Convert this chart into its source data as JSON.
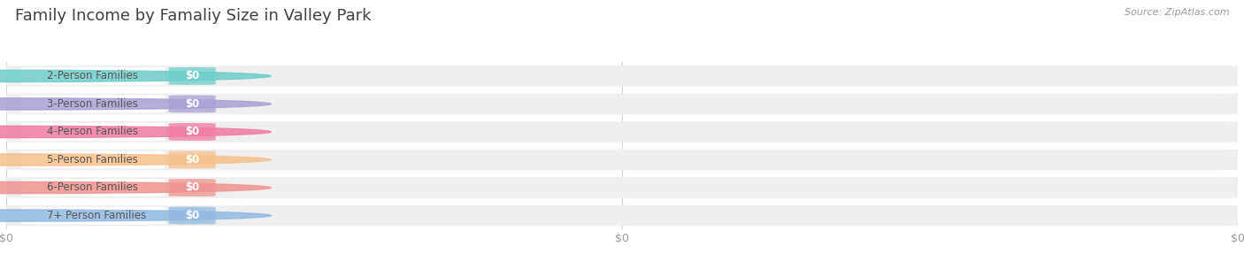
{
  "title": "Family Income by Famaliy Size in Valley Park",
  "source": "Source: ZipAtlas.com",
  "categories": [
    "2-Person Families",
    "3-Person Families",
    "4-Person Families",
    "5-Person Families",
    "6-Person Families",
    "7+ Person Families"
  ],
  "values": [
    0,
    0,
    0,
    0,
    0,
    0
  ],
  "bar_colors": [
    "#6dcdc9",
    "#a99fd5",
    "#f07ba1",
    "#f6c08a",
    "#f09390",
    "#91b9e1"
  ],
  "background_color": "#ffffff",
  "bar_bg_color": "#efefef",
  "label_bg_color": "#f8f8f8",
  "value_labels": [
    "$0",
    "$0",
    "$0",
    "$0",
    "$0",
    "$0"
  ],
  "x_tick_labels": [
    "$0",
    "$0",
    "$0"
  ],
  "x_tick_positions": [
    0.0,
    0.5,
    1.0
  ],
  "xlim": [
    0.0,
    1.0
  ],
  "title_fontsize": 13,
  "label_fontsize": 8.5,
  "tick_fontsize": 9,
  "source_fontsize": 8
}
